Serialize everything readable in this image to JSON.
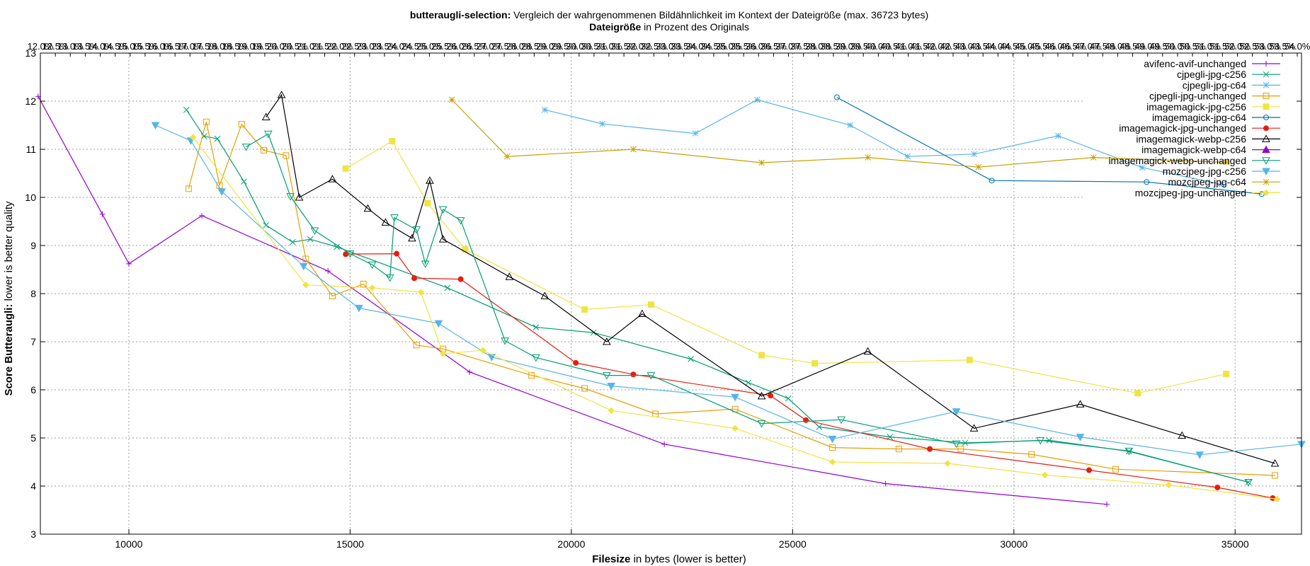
{
  "chart_data": {
    "type": "line",
    "title_bold": "butteraugli-selection:",
    "title_rest": " Vergleich der wahrgenommenen Bildähnlichkeit im Kontext der Dateigröße (max. 36723 bytes)",
    "x2label_bold": "Dateigröße",
    "x2label_rest": " in Prozent des Originals",
    "xlabel_bold": "Filesize",
    "xlabel_rest": " in bytes (lower is better)",
    "ylabel_bold": "Score Butteraugli:",
    "ylabel_rest": " lower is better quality",
    "xlim": [
      8000,
      36500
    ],
    "ylim": [
      3,
      13
    ],
    "x_ticks": [
      10000,
      15000,
      20000,
      25000,
      30000,
      35000
    ],
    "y_ticks": [
      3,
      4,
      5,
      6,
      7,
      8,
      9,
      10,
      11,
      12,
      13
    ],
    "grid": true,
    "legend_position": "top-right",
    "x2_ticks": [
      "12.0%",
      "12.5%",
      "13.0%",
      "13.5%",
      "14.0%",
      "14.5%",
      "15.0%",
      "15.5%",
      "16.0%",
      "16.5%",
      "17.0%",
      "17.5%",
      "18.0%",
      "18.5%",
      "19.0%",
      "19.5%",
      "20.0%",
      "20.5%",
      "21.0%",
      "21.5%",
      "22.0%",
      "22.5%",
      "23.0%",
      "23.5%",
      "24.0%",
      "24.5%",
      "25.0%",
      "25.5%",
      "26.0%",
      "26.5%",
      "27.0%",
      "27.5%",
      "28.0%",
      "28.5%",
      "29.0%",
      "29.5%",
      "30.0%",
      "30.5%",
      "31.0%",
      "31.5%",
      "32.0%",
      "32.5%",
      "33.0%",
      "33.5%",
      "34.0%",
      "34.5%",
      "35.0%",
      "35.5%",
      "36.0%",
      "36.5%",
      "37.0%",
      "37.5%",
      "38.0%",
      "38.5%",
      "39.0%",
      "39.5%",
      "40.0%",
      "40.5%",
      "41.0%",
      "41.5%",
      "42.0%",
      "42.5%",
      "43.0%",
      "43.5%",
      "44.0%",
      "44.5%",
      "45.0%",
      "45.5%",
      "46.0%",
      "46.5%",
      "47.0%",
      "47.5%",
      "48.0%",
      "48.5%",
      "49.0%",
      "49.5%",
      "50.0%",
      "50.5%",
      "51.0%",
      "51.5%",
      "52.0%",
      "52.5%",
      "53.0%",
      "53.5%",
      "54.0%"
    ],
    "series": [
      {
        "name": "avifenc-avif-unchanged",
        "color": "#9400d3",
        "marker": "plus",
        "points": [
          [
            7950,
            12.1
          ],
          [
            9400,
            9.65
          ],
          [
            10000,
            8.62
          ],
          [
            11650,
            9.62
          ],
          [
            14500,
            8.47
          ],
          [
            17700,
            6.37
          ],
          [
            22100,
            4.87
          ],
          [
            27100,
            4.05
          ],
          [
            32100,
            3.62
          ]
        ]
      },
      {
        "name": "cjpegli-jpg-c256",
        "color": "#009e73",
        "marker": "cross",
        "points": [
          [
            11300,
            11.82
          ],
          [
            11700,
            11.27
          ],
          [
            12000,
            11.22
          ],
          [
            12600,
            10.33
          ],
          [
            13100,
            9.42
          ],
          [
            13700,
            9.07
          ],
          [
            14100,
            9.13
          ],
          [
            14700,
            8.97
          ],
          [
            17200,
            8.12
          ],
          [
            19200,
            7.3
          ],
          [
            20500,
            7.19
          ],
          [
            22700,
            6.64
          ],
          [
            24000,
            6.15
          ],
          [
            24900,
            5.82
          ],
          [
            25600,
            5.23
          ],
          [
            27200,
            5.02
          ],
          [
            28900,
            4.9
          ],
          [
            30800,
            4.95
          ],
          [
            32600,
            4.72
          ],
          [
            35300,
            4.08
          ]
        ]
      },
      {
        "name": "cjpegli-jpg-c64",
        "color": "#56b4e9",
        "marker": "asterisk",
        "points": [
          [
            19400,
            11.82
          ],
          [
            20700,
            11.53
          ],
          [
            22800,
            11.33
          ],
          [
            24200,
            12.03
          ],
          [
            26300,
            11.5
          ],
          [
            27600,
            10.85
          ],
          [
            29100,
            10.9
          ],
          [
            31000,
            11.28
          ],
          [
            32900,
            10.62
          ],
          [
            34700,
            10.27
          ]
        ]
      },
      {
        "name": "cjpegli-jpg-unchanged",
        "color": "#e69f00",
        "marker": "square",
        "points": [
          [
            11350,
            10.18
          ],
          [
            11750,
            11.57
          ],
          [
            12050,
            10.25
          ],
          [
            12550,
            11.52
          ],
          [
            13050,
            10.98
          ],
          [
            13550,
            10.87
          ],
          [
            14000,
            8.72
          ],
          [
            14600,
            7.95
          ],
          [
            15300,
            8.2
          ],
          [
            16500,
            6.93
          ],
          [
            17100,
            6.85
          ],
          [
            19100,
            6.3
          ],
          [
            20300,
            6.03
          ],
          [
            21900,
            5.5
          ],
          [
            23700,
            5.6
          ],
          [
            25900,
            4.8
          ],
          [
            27400,
            4.77
          ],
          [
            28800,
            4.77
          ],
          [
            30400,
            4.66
          ],
          [
            32300,
            4.35
          ],
          [
            35900,
            4.22
          ]
        ]
      },
      {
        "name": "imagemagick-jpg-c256",
        "color": "#f0e442",
        "marker": "filled-square",
        "points": [
          [
            14900,
            10.6
          ],
          [
            15950,
            11.17
          ],
          [
            16750,
            9.88
          ],
          [
            17600,
            8.92
          ],
          [
            20300,
            7.67
          ],
          [
            21800,
            7.77
          ],
          [
            24300,
            6.72
          ],
          [
            25500,
            6.55
          ],
          [
            29000,
            6.62
          ],
          [
            32800,
            5.93
          ],
          [
            34800,
            6.33
          ]
        ]
      },
      {
        "name": "imagemagick-jpg-c64",
        "color": "#0072b2",
        "marker": "circle",
        "points": [
          [
            26000,
            12.08
          ],
          [
            29500,
            10.35
          ],
          [
            33000,
            10.32
          ],
          [
            35600,
            10.07
          ]
        ]
      },
      {
        "name": "imagemagick-jpg-unchanged",
        "color": "#e51e10",
        "marker": "filled-circle",
        "points": [
          [
            14900,
            8.82
          ],
          [
            16050,
            8.83
          ],
          [
            16450,
            8.32
          ],
          [
            17500,
            8.3
          ],
          [
            20100,
            6.56
          ],
          [
            21400,
            6.32
          ],
          [
            24500,
            5.88
          ],
          [
            25300,
            5.37
          ],
          [
            28100,
            4.77
          ],
          [
            31700,
            4.33
          ],
          [
            34600,
            3.97
          ],
          [
            35850,
            3.75
          ]
        ]
      },
      {
        "name": "imagemagick-webp-c256",
        "color": "#000000",
        "marker": "triangle",
        "points": [
          [
            13100,
            11.67
          ],
          [
            13450,
            12.13
          ],
          [
            13850,
            10.0
          ],
          [
            14600,
            10.38
          ],
          [
            15400,
            9.77
          ],
          [
            15800,
            9.48
          ],
          [
            16400,
            9.15
          ],
          [
            16800,
            10.35
          ],
          [
            17100,
            9.13
          ],
          [
            18600,
            8.35
          ],
          [
            19400,
            7.95
          ],
          [
            20800,
            7.0
          ],
          [
            21600,
            7.58
          ],
          [
            24300,
            5.87
          ],
          [
            26700,
            6.8
          ],
          [
            29100,
            5.2
          ],
          [
            31500,
            5.7
          ],
          [
            33800,
            5.05
          ],
          [
            35900,
            4.47
          ]
        ]
      },
      {
        "name": "imagemagick-webp-c64",
        "color": "#9400d3",
        "marker": "filled-triangle",
        "points": []
      },
      {
        "name": "imagemagick-webp-unchanged",
        "color": "#009e73",
        "marker": "down-triangle",
        "points": [
          [
            12650,
            11.05
          ],
          [
            13150,
            11.32
          ],
          [
            13650,
            10.02
          ],
          [
            14200,
            9.31
          ],
          [
            15000,
            8.83
          ],
          [
            15500,
            8.6
          ],
          [
            15900,
            8.33
          ],
          [
            16000,
            9.58
          ],
          [
            16500,
            9.33
          ],
          [
            16700,
            8.62
          ],
          [
            17100,
            9.75
          ],
          [
            17500,
            9.52
          ],
          [
            18500,
            7.02
          ],
          [
            19200,
            6.67
          ],
          [
            20800,
            6.3
          ],
          [
            21800,
            6.3
          ],
          [
            24300,
            5.3
          ],
          [
            26100,
            5.38
          ],
          [
            28700,
            4.88
          ],
          [
            30600,
            4.95
          ],
          [
            32600,
            4.73
          ],
          [
            35300,
            4.08
          ]
        ]
      },
      {
        "name": "mozcjpeg-jpg-c256",
        "color": "#56b4e9",
        "marker": "filled-down-triangle",
        "points": [
          [
            10600,
            11.5
          ],
          [
            11400,
            11.18
          ],
          [
            12100,
            10.12
          ],
          [
            13950,
            8.57
          ],
          [
            15200,
            7.7
          ],
          [
            17000,
            7.38
          ],
          [
            18200,
            6.68
          ],
          [
            20900,
            6.08
          ],
          [
            23700,
            5.85
          ],
          [
            25900,
            4.98
          ],
          [
            28700,
            5.55
          ],
          [
            31500,
            5.02
          ],
          [
            34200,
            4.65
          ],
          [
            36500,
            4.87
          ]
        ]
      },
      {
        "name": "mozcjpeg-jpg-c64",
        "color": "#c8a000",
        "marker": "star",
        "points": [
          [
            17300,
            12.03
          ],
          [
            18550,
            10.85
          ],
          [
            21400,
            11.0
          ],
          [
            24300,
            10.72
          ],
          [
            26700,
            10.83
          ],
          [
            29200,
            10.63
          ],
          [
            31800,
            10.83
          ],
          [
            34800,
            10.73
          ]
        ]
      },
      {
        "name": "mozcjpeg-jpg-unchanged",
        "color": "#f0e442",
        "marker": "filled-diamond",
        "points": [
          [
            11450,
            11.25
          ],
          [
            14000,
            8.18
          ],
          [
            15500,
            8.12
          ],
          [
            16600,
            8.03
          ],
          [
            17100,
            6.75
          ],
          [
            18000,
            6.82
          ],
          [
            20900,
            5.57
          ],
          [
            23700,
            5.2
          ],
          [
            25900,
            4.5
          ],
          [
            28500,
            4.47
          ],
          [
            30700,
            4.23
          ],
          [
            33500,
            4.02
          ],
          [
            35950,
            3.73
          ]
        ]
      }
    ]
  }
}
